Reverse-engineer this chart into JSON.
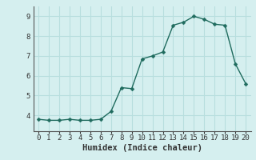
{
  "x": [
    0,
    1,
    2,
    3,
    4,
    5,
    6,
    7,
    8,
    9,
    10,
    11,
    12,
    13,
    14,
    15,
    16,
    17,
    18,
    19,
    20
  ],
  "y": [
    3.8,
    3.75,
    3.75,
    3.8,
    3.75,
    3.75,
    3.8,
    4.2,
    5.4,
    5.35,
    6.85,
    7.0,
    7.2,
    8.55,
    8.7,
    9.0,
    8.85,
    8.6,
    8.55,
    6.6,
    5.6
  ],
  "xlabel": "Humidex (Indice chaleur)",
  "ylim": [
    3.2,
    9.5
  ],
  "xlim": [
    -0.5,
    20.5
  ],
  "yticks": [
    4,
    5,
    6,
    7,
    8,
    9
  ],
  "xticks": [
    0,
    1,
    2,
    3,
    4,
    5,
    6,
    7,
    8,
    9,
    10,
    11,
    12,
    13,
    14,
    15,
    16,
    17,
    18,
    19,
    20
  ],
  "line_color": "#1f6b5e",
  "marker_color": "#1f6b5e",
  "bg_color": "#d5efef",
  "grid_color": "#b8dede",
  "xlabel_fontsize": 7.5,
  "tick_fontsize": 6.5,
  "linewidth": 1.0,
  "markersize": 2.5
}
